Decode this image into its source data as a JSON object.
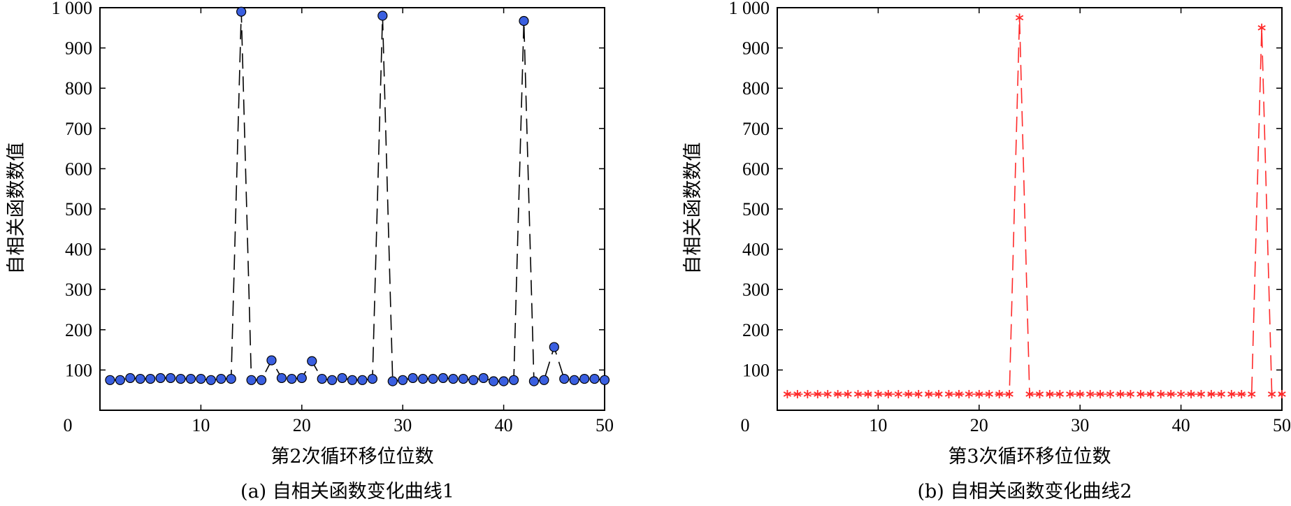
{
  "chart_data": [
    {
      "type": "line",
      "caption": "(a) 自相关函数变化曲线1",
      "xlabel": "第2次循环移位位数",
      "ylabel": "自相关函数数值",
      "xlim": [
        0,
        50
      ],
      "ylim": [
        0,
        1000
      ],
      "xticks": [
        "0",
        "10",
        "20",
        "30",
        "40",
        "50"
      ],
      "yticks": [
        "100",
        "200",
        "300",
        "400",
        "500",
        "600",
        "700",
        "800",
        "900",
        "1 000"
      ],
      "y_zero_label": "0",
      "line_style": "dashed",
      "line_color": "#000000",
      "marker": "circle",
      "marker_color": "#3a5fe0",
      "x": [
        1,
        2,
        3,
        4,
        5,
        6,
        7,
        8,
        9,
        10,
        11,
        12,
        13,
        14,
        15,
        16,
        17,
        18,
        19,
        20,
        21,
        22,
        23,
        24,
        25,
        26,
        27,
        28,
        29,
        30,
        31,
        32,
        33,
        34,
        35,
        36,
        37,
        38,
        39,
        40,
        41,
        42,
        43,
        44,
        45,
        46,
        47,
        48,
        49,
        50
      ],
      "y": [
        75,
        75,
        80,
        78,
        78,
        80,
        80,
        78,
        78,
        78,
        75,
        78,
        78,
        990,
        75,
        75,
        124,
        80,
        78,
        80,
        122,
        78,
        75,
        80,
        75,
        75,
        78,
        980,
        72,
        75,
        80,
        78,
        78,
        80,
        78,
        78,
        75,
        80,
        72,
        72,
        75,
        967,
        72,
        75,
        157,
        78,
        75,
        78,
        78,
        75
      ]
    },
    {
      "type": "line",
      "caption": "(b) 自相关函数变化曲线2",
      "xlabel": "第3次循环移位位数",
      "ylabel": "自相关函数数值",
      "xlim": [
        0,
        50
      ],
      "ylim": [
        0,
        1000
      ],
      "xticks": [
        "0",
        "10",
        "20",
        "30",
        "40",
        "50"
      ],
      "yticks": [
        "100",
        "200",
        "300",
        "400",
        "500",
        "600",
        "700",
        "800",
        "900",
        "1 000"
      ],
      "y_zero_label": "0",
      "line_style": "dashed",
      "line_color": "#ff2a2a",
      "marker": "asterisk",
      "marker_color": "#ff2a2a",
      "x": [
        1,
        2,
        3,
        4,
        5,
        6,
        7,
        8,
        9,
        10,
        11,
        12,
        13,
        14,
        15,
        16,
        17,
        18,
        19,
        20,
        21,
        22,
        23,
        24,
        25,
        26,
        27,
        28,
        29,
        30,
        31,
        32,
        33,
        34,
        35,
        36,
        37,
        38,
        39,
        40,
        41,
        42,
        43,
        44,
        45,
        46,
        47,
        48,
        49,
        50
      ],
      "y": [
        40,
        40,
        40,
        40,
        40,
        40,
        40,
        40,
        40,
        40,
        40,
        40,
        40,
        40,
        40,
        40,
        40,
        40,
        40,
        40,
        40,
        40,
        40,
        975,
        40,
        40,
        40,
        40,
        40,
        40,
        40,
        40,
        40,
        40,
        40,
        40,
        40,
        40,
        40,
        40,
        40,
        40,
        40,
        40,
        40,
        40,
        40,
        950,
        40,
        40
      ]
    }
  ]
}
